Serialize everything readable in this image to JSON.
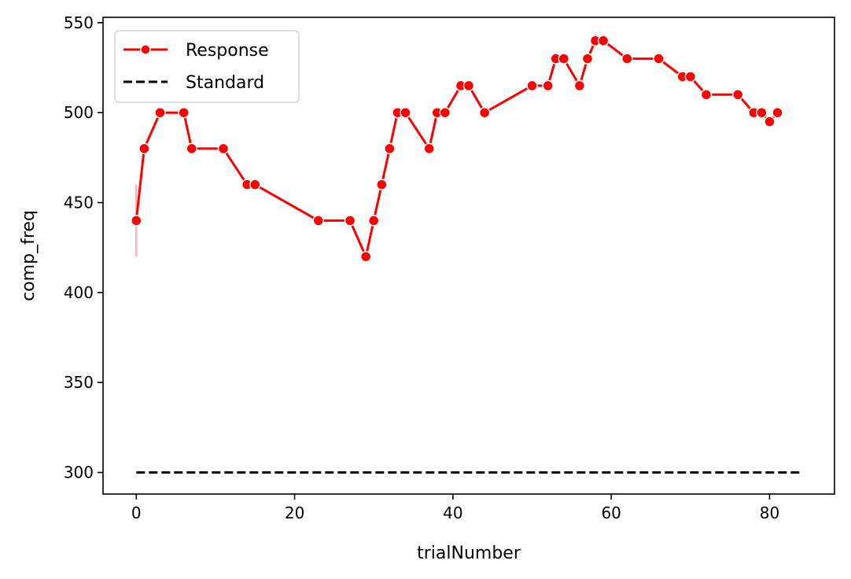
{
  "chart_data": {
    "type": "line",
    "title": "",
    "xlabel": "trialNumber",
    "ylabel": "comp_freq",
    "xlim": [
      -4.2,
      88.2
    ],
    "ylim": [
      288,
      553
    ],
    "xticks": [
      0,
      20,
      40,
      60,
      80
    ],
    "yticks": [
      300,
      350,
      400,
      450,
      500,
      550
    ],
    "grid": false,
    "legend_position": "top-left",
    "series": [
      {
        "name": "Response",
        "color": "#ff0000",
        "marker": "circle",
        "linestyle": "solid",
        "x": [
          0,
          1,
          3,
          6,
          7,
          11,
          14,
          15,
          23,
          27,
          29,
          30,
          31,
          32,
          33,
          34,
          37,
          38,
          39,
          41,
          42,
          44,
          50,
          52,
          53,
          54,
          56,
          57,
          58,
          59,
          62,
          66,
          69,
          70,
          72,
          76,
          78,
          79,
          80,
          81
        ],
        "y": [
          440,
          480,
          500,
          500,
          480,
          480,
          460,
          460,
          440,
          440,
          420,
          440,
          460,
          480,
          500,
          500,
          480,
          500,
          500,
          515,
          515,
          500,
          515,
          515,
          530,
          530,
          515,
          530,
          540,
          540,
          530,
          530,
          520,
          520,
          510,
          510,
          500,
          500,
          495,
          500
        ],
        "error_band": {
          "x": 0,
          "low": 420,
          "high": 460,
          "color": "#f4b6c2"
        }
      },
      {
        "name": "Standard",
        "color": "#000000",
        "linestyle": "dashed",
        "x": [
          0,
          84
        ],
        "y": [
          300,
          300
        ]
      }
    ]
  }
}
